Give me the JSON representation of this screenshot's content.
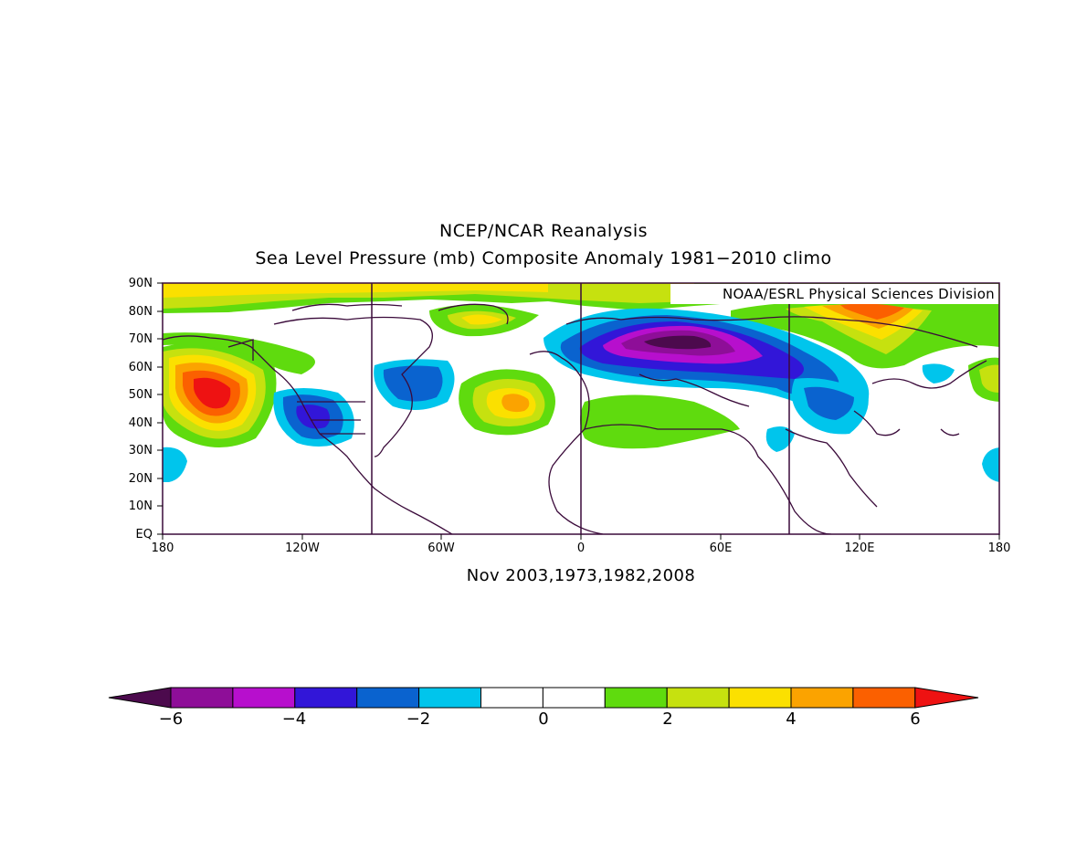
{
  "title_line1": "NCEP/NCAR Reanalysis",
  "title_line2": "Sea Level Pressure (mb) Composite Anomaly 1981−2010 climo",
  "credit": "NOAA/ESRL Physical Sciences Division",
  "subtitle": "Nov 2003,1973,1982,2008",
  "lat_labels": [
    "90N",
    "80N",
    "70N",
    "60N",
    "50N",
    "40N",
    "30N",
    "20N",
    "10N",
    "EQ"
  ],
  "lon_labels": [
    "180",
    "120W",
    "60W",
    "0",
    "60E",
    "120E",
    "180"
  ],
  "colorbar": {
    "labels": [
      "−6",
      "−4",
      "−2",
      "0",
      "2",
      "4",
      "6"
    ],
    "colors": [
      "#4c0a4d",
      "#8e0e98",
      "#b70fcd",
      "#3216d8",
      "#0a63cf",
      "#00c5ec",
      "#ffffff",
      "#ffffff",
      "#5fdb0e",
      "#c6e10f",
      "#fbe000",
      "#fba300",
      "#fb6000",
      "#ee1212"
    ]
  }
}
